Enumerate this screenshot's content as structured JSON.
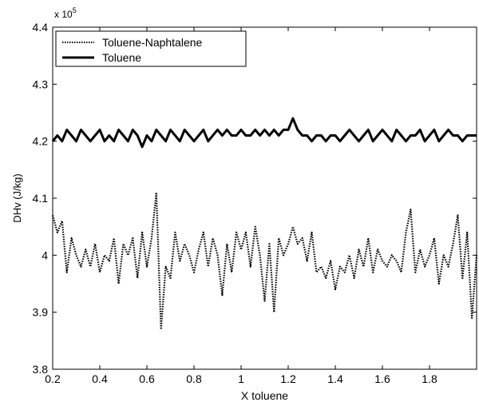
{
  "chart_data": {
    "type": "line",
    "title": "",
    "xlabel": "X toluene",
    "ylabel": "DHv (J/kg)",
    "exponent_label": "x 10",
    "exponent_power": "5",
    "xlim": [
      0.2,
      2.0
    ],
    "ylim": [
      3.8,
      4.4
    ],
    "xticks": [
      0.2,
      0.4,
      0.6,
      0.8,
      1.0,
      1.2,
      1.4,
      1.6,
      1.8
    ],
    "xtick_labels": [
      "0.2",
      "0.4",
      "0.6",
      "0.8",
      "1",
      "1.2",
      "1.4",
      "1.6",
      "1.8"
    ],
    "yticks": [
      3.8,
      3.9,
      4.0,
      4.1,
      4.2,
      4.3,
      4.4
    ],
    "ytick_labels": [
      "3.8",
      "3.9",
      "4",
      "4.1",
      "4.2",
      "4.3",
      "4.4"
    ],
    "grid": false,
    "legend_position": "top-left",
    "series": [
      {
        "name": "Toluene-Naphtalene",
        "style": "dotted",
        "color": "#000000",
        "x": [
          0.2,
          0.22,
          0.24,
          0.26,
          0.28,
          0.3,
          0.32,
          0.34,
          0.36,
          0.38,
          0.4,
          0.42,
          0.44,
          0.46,
          0.48,
          0.5,
          0.52,
          0.54,
          0.56,
          0.58,
          0.6,
          0.62,
          0.64,
          0.66,
          0.68,
          0.7,
          0.72,
          0.74,
          0.76,
          0.78,
          0.8,
          0.82,
          0.84,
          0.86,
          0.88,
          0.9,
          0.92,
          0.94,
          0.96,
          0.98,
          1.0,
          1.02,
          1.04,
          1.06,
          1.08,
          1.1,
          1.12,
          1.14,
          1.16,
          1.18,
          1.2,
          1.22,
          1.24,
          1.26,
          1.28,
          1.3,
          1.32,
          1.34,
          1.36,
          1.38,
          1.4,
          1.42,
          1.44,
          1.46,
          1.48,
          1.5,
          1.52,
          1.54,
          1.56,
          1.58,
          1.6,
          1.62,
          1.64,
          1.66,
          1.68,
          1.7,
          1.72,
          1.74,
          1.76,
          1.78,
          1.8,
          1.82,
          1.84,
          1.86,
          1.88,
          1.9,
          1.92,
          1.94,
          1.96,
          1.98,
          2.0
        ],
        "y": [
          4.07,
          4.04,
          4.06,
          3.97,
          4.03,
          4.0,
          3.98,
          4.01,
          3.98,
          4.02,
          3.97,
          4.0,
          3.99,
          4.03,
          3.95,
          4.02,
          4.0,
          4.03,
          3.96,
          4.04,
          3.98,
          4.03,
          4.11,
          3.87,
          3.98,
          3.96,
          4.04,
          3.99,
          4.02,
          4.0,
          3.97,
          4.01,
          4.04,
          3.98,
          4.03,
          4.0,
          3.93,
          4.02,
          3.97,
          4.04,
          4.01,
          4.04,
          3.98,
          4.05,
          4.0,
          3.92,
          4.02,
          3.9,
          4.03,
          4.0,
          4.02,
          4.05,
          4.02,
          4.03,
          3.99,
          4.04,
          3.97,
          3.98,
          3.96,
          3.99,
          3.94,
          3.98,
          3.97,
          4.0,
          3.96,
          4.01,
          3.98,
          4.03,
          3.97,
          4.01,
          3.99,
          3.98,
          4.0,
          3.99,
          3.97,
          4.04,
          4.08,
          3.97,
          4.01,
          3.98,
          4.0,
          4.03,
          3.95,
          4.0,
          3.98,
          4.02,
          4.07,
          3.96,
          4.04,
          3.89,
          4.0
        ]
      },
      {
        "name": "Toluene",
        "style": "solid",
        "color": "#000000",
        "x": [
          0.2,
          0.22,
          0.24,
          0.26,
          0.28,
          0.3,
          0.32,
          0.34,
          0.36,
          0.38,
          0.4,
          0.42,
          0.44,
          0.46,
          0.48,
          0.5,
          0.52,
          0.54,
          0.56,
          0.58,
          0.6,
          0.62,
          0.64,
          0.66,
          0.68,
          0.7,
          0.72,
          0.74,
          0.76,
          0.78,
          0.8,
          0.82,
          0.84,
          0.86,
          0.88,
          0.9,
          0.92,
          0.94,
          0.96,
          0.98,
          1.0,
          1.02,
          1.04,
          1.06,
          1.08,
          1.1,
          1.12,
          1.14,
          1.16,
          1.18,
          1.2,
          1.22,
          1.24,
          1.26,
          1.28,
          1.3,
          1.32,
          1.34,
          1.36,
          1.38,
          1.4,
          1.42,
          1.44,
          1.46,
          1.48,
          1.5,
          1.52,
          1.54,
          1.56,
          1.58,
          1.6,
          1.62,
          1.64,
          1.66,
          1.68,
          1.7,
          1.72,
          1.74,
          1.76,
          1.78,
          1.8,
          1.82,
          1.84,
          1.86,
          1.88,
          1.9,
          1.92,
          1.94,
          1.96,
          1.98,
          2.0
        ],
        "y": [
          4.2,
          4.21,
          4.2,
          4.22,
          4.21,
          4.2,
          4.22,
          4.21,
          4.2,
          4.21,
          4.22,
          4.2,
          4.21,
          4.2,
          4.22,
          4.21,
          4.2,
          4.22,
          4.21,
          4.19,
          4.21,
          4.2,
          4.22,
          4.21,
          4.2,
          4.22,
          4.21,
          4.2,
          4.22,
          4.21,
          4.2,
          4.21,
          4.22,
          4.2,
          4.21,
          4.22,
          4.21,
          4.22,
          4.21,
          4.21,
          4.22,
          4.21,
          4.21,
          4.22,
          4.21,
          4.22,
          4.21,
          4.22,
          4.21,
          4.22,
          4.22,
          4.24,
          4.22,
          4.21,
          4.21,
          4.2,
          4.21,
          4.21,
          4.2,
          4.21,
          4.21,
          4.2,
          4.21,
          4.22,
          4.21,
          4.2,
          4.21,
          4.22,
          4.2,
          4.21,
          4.22,
          4.21,
          4.2,
          4.22,
          4.21,
          4.2,
          4.21,
          4.21,
          4.22,
          4.2,
          4.21,
          4.22,
          4.2,
          4.21,
          4.22,
          4.21,
          4.21,
          4.2,
          4.21,
          4.21,
          4.21
        ]
      }
    ]
  }
}
